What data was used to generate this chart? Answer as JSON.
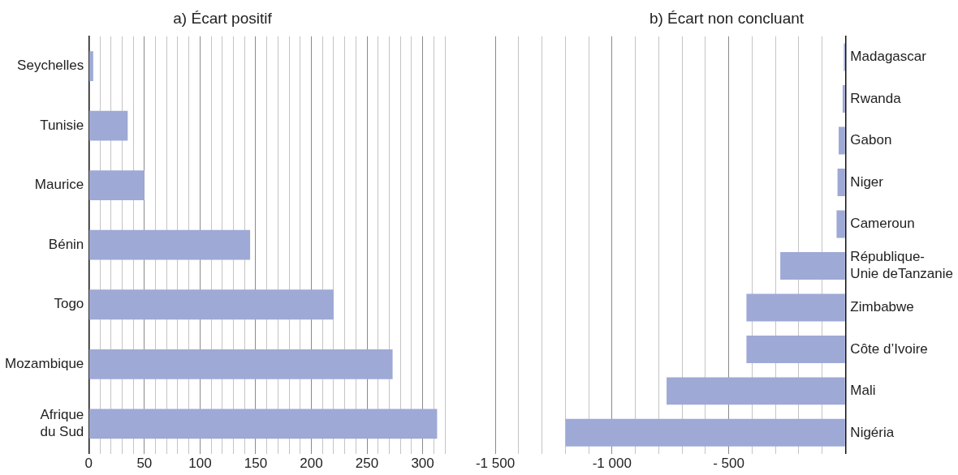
{
  "chart_data": [
    {
      "type": "bar",
      "orientation": "horizontal",
      "title": "a) Écart positif",
      "categories": [
        "Seychelles",
        "Tunisie",
        "Maurice",
        "Bénin",
        "Togo",
        "Mozambique",
        "Afrique\ndu Sud"
      ],
      "values": [
        4,
        35,
        50,
        145,
        220,
        273,
        313
      ],
      "color": "#9ea9d6",
      "xlim": [
        0,
        320
      ],
      "xticks": [
        0,
        {
          "value": 10,
          "label": null
        },
        {
          "value": 20,
          "label": null
        },
        {
          "value": 30,
          "label": null
        },
        {
          "value": 40,
          "label": null
        },
        50,
        {
          "value": 60,
          "label": null
        },
        {
          "value": 70,
          "label": null
        },
        {
          "value": 80,
          "label": null
        },
        {
          "value": 90,
          "label": null
        },
        100,
        {
          "value": 110,
          "label": null
        },
        {
          "value": 120,
          "label": null
        },
        {
          "value": 130,
          "label": null
        },
        {
          "value": 140,
          "label": null
        },
        150,
        {
          "value": 160,
          "label": null
        },
        {
          "value": 170,
          "label": null
        },
        {
          "value": 180,
          "label": null
        },
        {
          "value": 190,
          "label": null
        },
        200,
        {
          "value": 210,
          "label": null
        },
        {
          "value": 220,
          "label": null
        },
        {
          "value": 230,
          "label": null
        },
        {
          "value": 240,
          "label": null
        },
        250,
        {
          "value": 260,
          "label": null
        },
        {
          "value": 270,
          "label": null
        },
        {
          "value": 280,
          "label": null
        },
        {
          "value": 290,
          "label": null
        },
        300,
        {
          "value": 310,
          "label": null
        },
        {
          "value": 320,
          "label": null
        }
      ],
      "grid": "x",
      "legend": false
    },
    {
      "type": "bar",
      "orientation": "horizontal",
      "title": "b) Écart non concluant",
      "categories": [
        "Madagascar",
        "Rwanda",
        "Gabon",
        "Niger",
        "Cameroun",
        "République-\nUnie deTanzanie",
        "Zimbabwe",
        "Côte d’Ivoire",
        "Mali",
        "Nigéria"
      ],
      "values": [
        -7,
        -12,
        -29,
        -34,
        -38,
        -279,
        -424,
        -424,
        -766,
        -1199
      ],
      "color": "#9ea9d6",
      "xlim": [
        -1500,
        0
      ],
      "xticks": [
        {
          "value": -1500,
          "label": "-1 500"
        },
        {
          "value": -1400,
          "label": null
        },
        {
          "value": -1300,
          "label": null
        },
        {
          "value": -1200,
          "label": null
        },
        {
          "value": -1100,
          "label": null
        },
        {
          "value": -1000,
          "label": "-1 000"
        },
        {
          "value": -900,
          "label": null
        },
        {
          "value": -800,
          "label": null
        },
        {
          "value": -700,
          "label": null
        },
        {
          "value": -600,
          "label": null
        },
        {
          "value": -500,
          "label": "- 500"
        },
        {
          "value": -400,
          "label": null
        },
        {
          "value": -300,
          "label": null
        },
        {
          "value": -200,
          "label": null
        },
        {
          "value": -100,
          "label": null
        },
        {
          "value": 0,
          "label": null
        }
      ],
      "grid": "x",
      "legend": false
    }
  ]
}
